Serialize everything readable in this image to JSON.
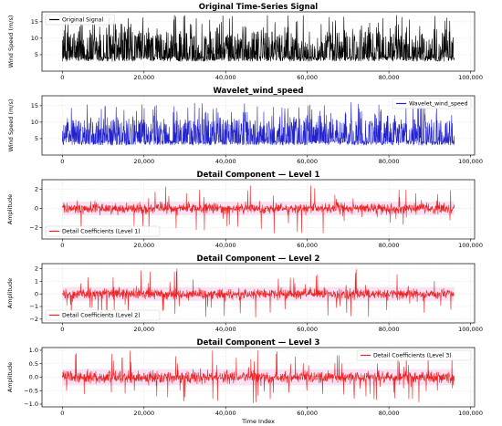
{
  "chart_data": [
    {
      "type": "line",
      "title": "Original Time-Series Signal",
      "xlabel": "",
      "ylabel": "Wind Speed (m/s)",
      "xlim": [
        -5000,
        101000
      ],
      "ylim": [
        0,
        18
      ],
      "yticks": [
        5,
        10,
        15
      ],
      "xticks": [
        0,
        20000,
        40000,
        60000,
        80000,
        100000
      ],
      "xtick_labels": [
        "0",
        "20,000",
        "40,000",
        "60,000",
        "80,000",
        "100,000"
      ],
      "grid": true,
      "legend_position": "top-left",
      "color": "#000000",
      "series": [
        {
          "name": "Original Signal",
          "n_points": 96000,
          "baseline": 3,
          "typical_max": 12,
          "peak_max": 17
        }
      ]
    },
    {
      "type": "line",
      "title": "Wavelet_wind_speed",
      "xlabel": "",
      "ylabel": "Wind Speed (m/s)",
      "xlim": [
        -5000,
        101000
      ],
      "ylim": [
        0,
        18
      ],
      "yticks": [
        5,
        10,
        15
      ],
      "xticks": [
        0,
        20000,
        40000,
        60000,
        80000,
        100000
      ],
      "xtick_labels": [
        "0",
        "20,000",
        "40,000",
        "60,000",
        "80,000",
        "100,000"
      ],
      "grid": true,
      "legend_position": "top-right",
      "color": "#2222cc",
      "series": [
        {
          "name": "Wavelet_wind_speed",
          "n_points": 96000,
          "baseline": 3,
          "typical_max": 11,
          "peak_max": 16
        }
      ]
    },
    {
      "type": "line",
      "title": "Detail Component — Level 1",
      "xlabel": "",
      "ylabel": "Amplitude",
      "xlim": [
        -5000,
        101000
      ],
      "ylim": [
        -3.2,
        3.0
      ],
      "yticks": [
        -2,
        0,
        2
      ],
      "xticks": [
        0,
        20000,
        40000,
        60000,
        80000,
        100000
      ],
      "xtick_labels": [
        "0",
        "20,000",
        "40,000",
        "60,000",
        "80,000",
        "100,000"
      ],
      "grid": true,
      "legend_position": "bottom-left",
      "color": "#ee2222",
      "series": [
        {
          "name": "Detail Coefficients (Level 1)",
          "n_points": 96000,
          "typical_amplitude": 0.7,
          "peak_amplitude": 2.6
        }
      ]
    },
    {
      "type": "line",
      "title": "Detail Component — Level 2",
      "xlabel": "",
      "ylabel": "Amplitude",
      "xlim": [
        -5000,
        101000
      ],
      "ylim": [
        -2.3,
        2.4
      ],
      "yticks": [
        -2,
        -1,
        0,
        1,
        2
      ],
      "xticks": [
        0,
        20000,
        40000,
        60000,
        80000,
        100000
      ],
      "xtick_labels": [
        "0",
        "20,000",
        "40,000",
        "60,000",
        "80,000",
        "100,000"
      ],
      "grid": true,
      "legend_position": "bottom-left",
      "color": "#ee2222",
      "series": [
        {
          "name": "Detail Coefficients (Level 2)",
          "n_points": 96000,
          "typical_amplitude": 0.55,
          "peak_amplitude": 2.0
        }
      ]
    },
    {
      "type": "line",
      "title": "Detail Component — Level 3",
      "xlabel": "Time Index",
      "ylabel": "Amplitude",
      "xlim": [
        -5000,
        101000
      ],
      "ylim": [
        -1.1,
        1.1
      ],
      "yticks": [
        -1.0,
        -0.5,
        0.0,
        0.5,
        1.0
      ],
      "ytick_labels": [
        "−1.0",
        "−0.5",
        "0.0",
        "0.5",
        "1.0"
      ],
      "xticks": [
        0,
        20000,
        40000,
        60000,
        80000,
        100000
      ],
      "xtick_labels": [
        "0",
        "20,000",
        "40,000",
        "60,000",
        "80,000",
        "100,000"
      ],
      "grid": true,
      "legend_position": "top-right",
      "color": "#ee2222",
      "series": [
        {
          "name": "Detail Coefficients (Level 3)",
          "n_points": 96000,
          "typical_amplitude": 0.3,
          "peak_amplitude": 1.0
        }
      ]
    }
  ]
}
